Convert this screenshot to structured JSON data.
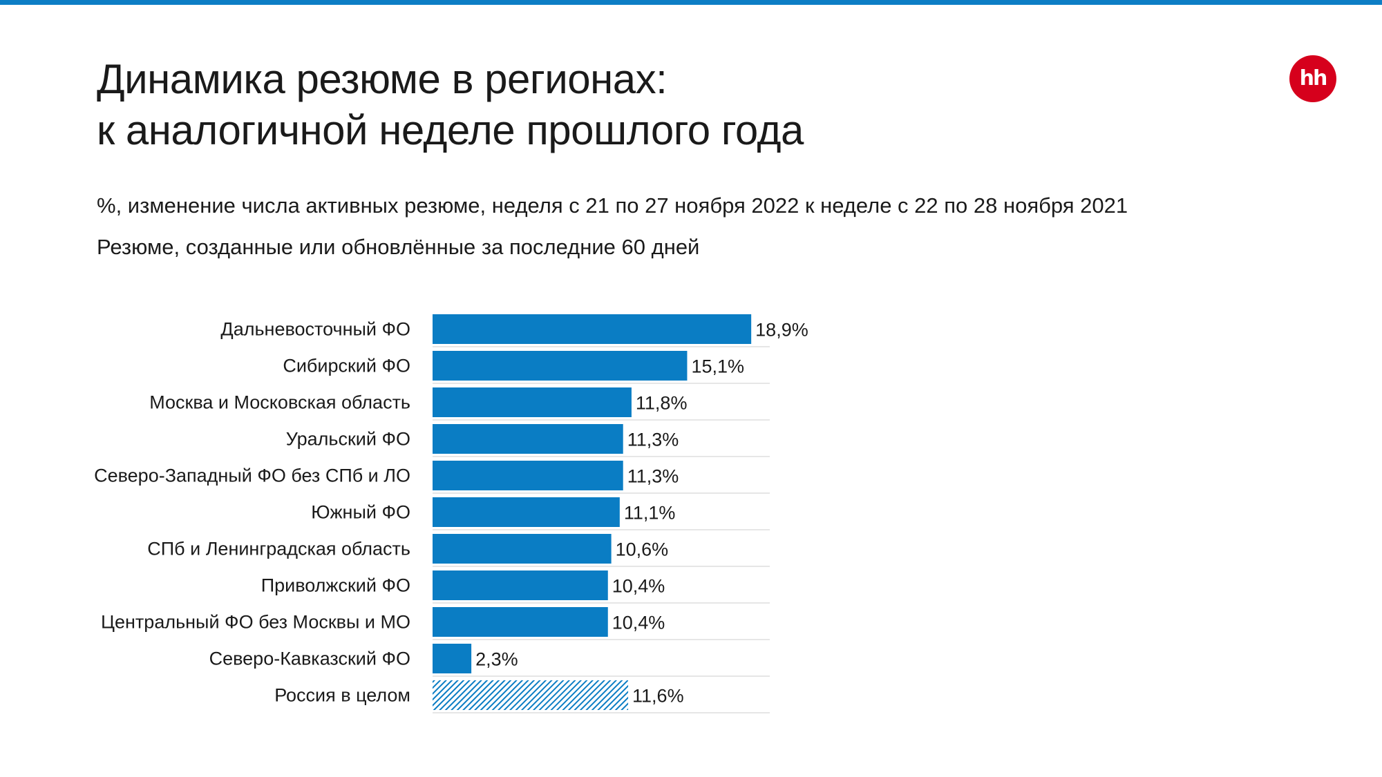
{
  "title_lines": [
    "Динамика резюме в регионах:",
    "к аналогичной неделе прошлого года"
  ],
  "subtitle_1": "%, изменение числа активных резюме, неделя с 21 по 27 ноября 2022 к неделе с 22 по 28 ноября 2021",
  "subtitle_2": "Резюме, созданные или обновлённые за последние 60 дней",
  "logo_text": "hh",
  "colors": {
    "accent": "#0d7ec5",
    "bar": "#0a7dc4",
    "logo": "#d6001c",
    "row_rule": "#e6e6e6"
  },
  "chart_data": {
    "type": "bar",
    "orientation": "horizontal",
    "categories": [
      "Дальневосточный ФО",
      "Сибирский ФО",
      "Москва и Московская область",
      "Уральский ФО",
      "Северо-Западный ФО без СПб и ЛО",
      "Южный ФО",
      "СПб и Ленинградская область",
      "Приволжский ФО",
      "Центральный ФО без Москвы и МО",
      "Северо-Кавказский ФО",
      "Россия в целом"
    ],
    "values": [
      18.9,
      15.1,
      11.8,
      11.3,
      11.3,
      11.1,
      10.6,
      10.4,
      10.4,
      2.3,
      11.6
    ],
    "value_labels": [
      "18,9%",
      "15,1%",
      "11,8%",
      "11,3%",
      "11,3%",
      "11,1%",
      "10,6%",
      "10,4%",
      "10,4%",
      "2,3%",
      "11,6%"
    ],
    "highlight": [
      "",
      "",
      "",
      "",
      "",
      "",
      "",
      "",
      "",
      "",
      "hatched"
    ],
    "xlim": [
      0,
      20
    ],
    "grid": false
  }
}
